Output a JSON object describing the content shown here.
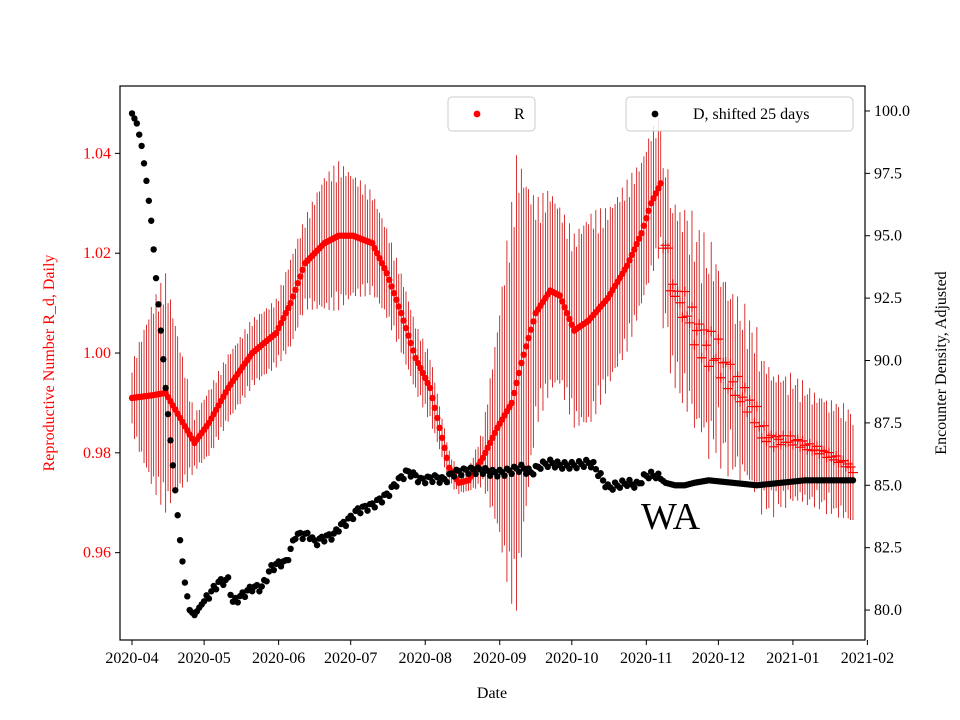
{
  "chart_data": {
    "type": "scatter",
    "xlabel": "Date",
    "ylabel_left": "Reproductive Number R_d, Daily",
    "ylabel_right": "Encounter Density, Adjusted",
    "annotation": "WA",
    "colors": {
      "r_series": "#ff0000",
      "d_series": "#000000",
      "errorbar": "#cc0000",
      "left_axis_text": "#ff0000"
    },
    "x_ticks": [
      "2020-04",
      "2020-05",
      "2020-06",
      "2020-07",
      "2020-08",
      "2020-09",
      "2020-10",
      "2020-11",
      "2020-12",
      "2021-01",
      "2021-02"
    ],
    "xlim_days": [
      -5,
      305
    ],
    "y_left": {
      "lim": [
        0.9425,
        1.0535
      ],
      "ticks": [
        0.96,
        0.98,
        1.0,
        1.02,
        1.04
      ],
      "tick_labels": [
        "0.96",
        "0.98",
        "1.00",
        "1.02",
        "1.04"
      ]
    },
    "y_right": {
      "lim": [
        78.8,
        101.0
      ],
      "ticks": [
        80.0,
        82.5,
        85.0,
        87.5,
        90.0,
        92.5,
        95.0,
        97.5,
        100.0
      ],
      "tick_labels": [
        "80.0",
        "82.5",
        "85.0",
        "87.5",
        "90.0",
        "92.5",
        "95.0",
        "97.5",
        "100.0"
      ]
    },
    "legend": [
      {
        "label": "R",
        "series": "R",
        "placement": "upper-center"
      },
      {
        "label": "D, shifted 25 days",
        "series": "D",
        "placement": "upper-right"
      }
    ],
    "series": [
      {
        "name": "R",
        "axis": "left",
        "marker": "dot",
        "day_range": [
          0,
          220
        ],
        "keyframes": [
          [
            0,
            0.991
          ],
          [
            8,
            0.9915
          ],
          [
            14,
            0.992
          ],
          [
            20,
            0.987
          ],
          [
            26,
            0.982
          ],
          [
            32,
            0.986
          ],
          [
            40,
            0.993
          ],
          [
            50,
            1.0
          ],
          [
            60,
            1.004
          ],
          [
            66,
            1.01
          ],
          [
            72,
            1.018
          ],
          [
            80,
            1.022
          ],
          [
            86,
            1.0235
          ],
          [
            92,
            1.0235
          ],
          [
            100,
            1.022
          ],
          [
            106,
            1.016
          ],
          [
            112,
            1.008
          ],
          [
            118,
            0.999
          ],
          [
            124,
            0.993
          ],
          [
            128,
            0.985
          ],
          [
            132,
            0.977
          ],
          [
            136,
            0.974
          ],
          [
            140,
            0.9745
          ],
          [
            146,
            0.979
          ],
          [
            152,
            0.985
          ],
          [
            158,
            0.99
          ],
          [
            162,
            0.998
          ],
          [
            168,
            1.008
          ],
          [
            174,
            1.0125
          ],
          [
            178,
            1.0115
          ],
          [
            184,
            1.0045
          ],
          [
            190,
            1.0065
          ],
          [
            198,
            1.011
          ],
          [
            206,
            1.0175
          ],
          [
            212,
            1.024
          ],
          [
            216,
            1.03
          ],
          [
            220,
            1.034
          ]
        ],
        "error_keyframes": [
          [
            0,
            0.006
          ],
          [
            8,
            0.016
          ],
          [
            14,
            0.021
          ],
          [
            20,
            0.013
          ],
          [
            26,
            0.005
          ],
          [
            32,
            0.006
          ],
          [
            40,
            0.006
          ],
          [
            50,
            0.006
          ],
          [
            60,
            0.006
          ],
          [
            66,
            0.008
          ],
          [
            72,
            0.008
          ],
          [
            80,
            0.012
          ],
          [
            86,
            0.013
          ],
          [
            92,
            0.011
          ],
          [
            100,
            0.009
          ],
          [
            106,
            0.008
          ],
          [
            112,
            0.007
          ],
          [
            118,
            0.006
          ],
          [
            124,
            0.006
          ],
          [
            128,
            0.004
          ],
          [
            132,
            0.003
          ],
          [
            136,
            0.002
          ],
          [
            140,
            0.002
          ],
          [
            146,
            0.005
          ],
          [
            152,
            0.018
          ],
          [
            156,
            0.03
          ],
          [
            160,
            0.04
          ],
          [
            164,
            0.03
          ],
          [
            168,
            0.02
          ],
          [
            174,
            0.018
          ],
          [
            178,
            0.016
          ],
          [
            184,
            0.017
          ],
          [
            190,
            0.019
          ],
          [
            198,
            0.016
          ],
          [
            206,
            0.015
          ],
          [
            212,
            0.013
          ],
          [
            216,
            0.013
          ],
          [
            220,
            0.012
          ]
        ]
      },
      {
        "name": "R (projection)",
        "axis": "left",
        "marker": "plus",
        "day_range": [
          221,
          300
        ],
        "keyframes": [
          [
            221,
            1.021
          ],
          [
            223,
            1.0215
          ],
          [
            224,
            1.0125
          ],
          [
            226,
            1.013
          ],
          [
            228,
            1.0095
          ],
          [
            230,
            1.0095
          ],
          [
            232,
            1.0075
          ],
          [
            234,
            1.0045
          ],
          [
            236,
            1.0035
          ],
          [
            240,
            1.0005
          ],
          [
            242,
            1.0005
          ],
          [
            244,
            0.9995
          ],
          [
            246,
            0.997
          ],
          [
            248,
            0.996
          ],
          [
            250,
            0.9945
          ],
          [
            252,
            0.9925
          ],
          [
            254,
            0.9915
          ],
          [
            256,
            0.9905
          ],
          [
            258,
            0.9885
          ],
          [
            260,
            0.9875
          ],
          [
            262,
            0.984
          ],
          [
            264,
            0.9835
          ],
          [
            266,
            0.9825
          ],
          [
            270,
            0.9825
          ],
          [
            274,
            0.9825
          ],
          [
            278,
            0.982
          ],
          [
            282,
            0.981
          ],
          [
            286,
            0.9805
          ],
          [
            290,
            0.9795
          ],
          [
            294,
            0.9785
          ],
          [
            298,
            0.9775
          ],
          [
            300,
            0.9765
          ]
        ],
        "scatter_keyframes": [
          [
            221,
            0.0
          ],
          [
            230,
            0.003
          ],
          [
            240,
            0.004
          ],
          [
            250,
            0.003
          ],
          [
            260,
            0.002
          ],
          [
            270,
            0.001
          ],
          [
            300,
            0.0005
          ]
        ],
        "error_keyframes": [
          [
            221,
            0.014
          ],
          [
            226,
            0.016
          ],
          [
            232,
            0.017
          ],
          [
            240,
            0.017
          ],
          [
            246,
            0.016
          ],
          [
            252,
            0.015
          ],
          [
            260,
            0.014
          ],
          [
            268,
            0.012
          ],
          [
            276,
            0.011
          ],
          [
            284,
            0.01
          ],
          [
            292,
            0.01
          ],
          [
            300,
            0.01
          ]
        ]
      },
      {
        "name": "D, shifted 25 days",
        "axis": "right",
        "marker": "dot",
        "day_range": [
          0,
          300
        ],
        "keyframes": [
          [
            0,
            99.9
          ],
          [
            2,
            99.5
          ],
          [
            4,
            98.6
          ],
          [
            6,
            97.2
          ],
          [
            8,
            95.6
          ],
          [
            10,
            93.3
          ],
          [
            12,
            91.2
          ],
          [
            14,
            88.9
          ],
          [
            16,
            86.8
          ],
          [
            18,
            84.8
          ],
          [
            20,
            82.8
          ],
          [
            22,
            81.1
          ],
          [
            24,
            80.0
          ],
          [
            26,
            79.8
          ],
          [
            28,
            80.1
          ],
          [
            32,
            80.6
          ],
          [
            36,
            81.1
          ],
          [
            40,
            81.2
          ],
          [
            42,
            80.3
          ],
          [
            46,
            80.6
          ],
          [
            50,
            80.9
          ],
          [
            54,
            80.9
          ],
          [
            58,
            81.7
          ],
          [
            62,
            81.9
          ],
          [
            64,
            81.9
          ],
          [
            66,
            82.4
          ],
          [
            68,
            83.0
          ],
          [
            70,
            83.0
          ],
          [
            74,
            83.0
          ],
          [
            76,
            82.7
          ],
          [
            80,
            82.9
          ],
          [
            84,
            83.0
          ],
          [
            86,
            83.3
          ],
          [
            90,
            83.6
          ],
          [
            94,
            84.0
          ],
          [
            100,
            84.2
          ],
          [
            106,
            84.6
          ],
          [
            110,
            85.1
          ],
          [
            114,
            85.5
          ],
          [
            116,
            85.5
          ],
          [
            120,
            85.2
          ],
          [
            126,
            85.3
          ],
          [
            130,
            85.2
          ],
          [
            134,
            85.5
          ],
          [
            140,
            85.6
          ],
          [
            146,
            85.6
          ],
          [
            150,
            85.5
          ],
          [
            154,
            85.5
          ],
          [
            158,
            85.6
          ],
          [
            162,
            85.7
          ],
          [
            166,
            85.5
          ],
          [
            170,
            85.8
          ],
          [
            174,
            85.9
          ],
          [
            178,
            85.8
          ],
          [
            184,
            85.8
          ],
          [
            190,
            85.9
          ],
          [
            192,
            85.8
          ],
          [
            194,
            85.5
          ],
          [
            196,
            85.2
          ],
          [
            198,
            84.9
          ],
          [
            202,
            85.0
          ],
          [
            206,
            85.1
          ],
          [
            210,
            85.0
          ],
          [
            214,
            85.4
          ],
          [
            218,
            85.4
          ],
          [
            222,
            85.1
          ],
          [
            226,
            85.0
          ],
          [
            230,
            85.0
          ],
          [
            234,
            85.1
          ],
          [
            240,
            85.2
          ],
          [
            250,
            85.1
          ],
          [
            260,
            85.0
          ],
          [
            270,
            85.1
          ],
          [
            280,
            85.2
          ],
          [
            290,
            85.2
          ],
          [
            300,
            85.2
          ]
        ],
        "noise_amplitude": 0.15
      }
    ]
  }
}
